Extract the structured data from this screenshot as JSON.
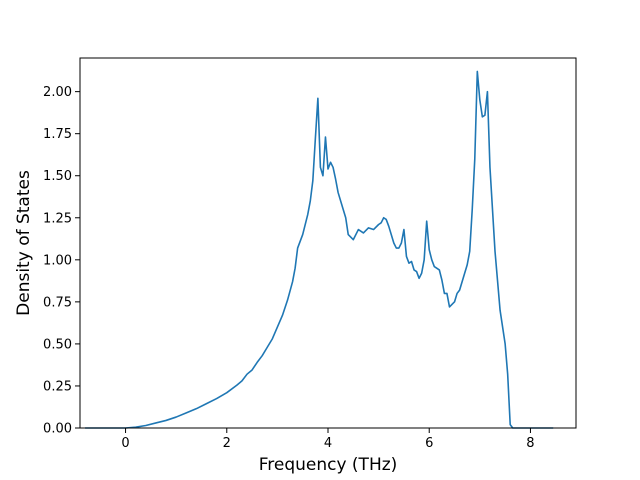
{
  "chart_data": {
    "type": "line",
    "title": "",
    "xlabel": "Frequency (THz)",
    "ylabel": "Density of States",
    "xlim": [
      -0.9,
      8.9
    ],
    "ylim": [
      0.0,
      2.2
    ],
    "x_ticks": [
      0,
      2,
      4,
      6,
      8
    ],
    "x_tick_labels": [
      "0",
      "2",
      "4",
      "6",
      "8"
    ],
    "y_ticks": [
      0.0,
      0.25,
      0.5,
      0.75,
      1.0,
      1.25,
      1.5,
      1.75,
      2.0
    ],
    "y_tick_labels": [
      "0.00",
      "0.25",
      "0.50",
      "0.75",
      "1.00",
      "1.25",
      "1.50",
      "1.75",
      "2.00"
    ],
    "grid": false,
    "color": "#1f77b4",
    "series": [
      {
        "x": [
          -0.8,
          -0.4,
          0.0,
          0.2,
          0.4,
          0.6,
          0.8,
          1.0,
          1.2,
          1.4,
          1.6,
          1.8,
          2.0,
          2.2,
          2.3,
          2.4,
          2.5,
          2.6,
          2.7,
          2.8,
          2.9,
          3.0,
          3.1,
          3.2,
          3.3,
          3.35,
          3.4,
          3.5,
          3.6,
          3.65,
          3.7,
          3.75,
          3.8,
          3.85,
          3.9,
          3.95,
          4.0,
          4.05,
          4.1,
          4.15,
          4.2,
          4.3,
          4.35,
          4.4,
          4.5,
          4.6,
          4.7,
          4.8,
          4.9,
          5.0,
          5.05,
          5.1,
          5.15,
          5.2,
          5.3,
          5.35,
          5.4,
          5.45,
          5.5,
          5.55,
          5.6,
          5.65,
          5.7,
          5.75,
          5.8,
          5.85,
          5.9,
          5.95,
          6.0,
          6.05,
          6.1,
          6.2,
          6.25,
          6.3,
          6.35,
          6.4,
          6.5,
          6.55,
          6.6,
          6.7,
          6.75,
          6.8,
          6.85,
          6.9,
          6.95,
          7.0,
          7.05,
          7.1,
          7.15,
          7.2,
          7.3,
          7.4,
          7.5,
          7.55,
          7.6,
          7.65,
          7.7,
          8.0,
          8.45
        ],
        "y": [
          0.0,
          0.0,
          0.0,
          0.005,
          0.015,
          0.03,
          0.045,
          0.065,
          0.09,
          0.115,
          0.145,
          0.175,
          0.21,
          0.255,
          0.28,
          0.32,
          0.345,
          0.39,
          0.43,
          0.48,
          0.53,
          0.6,
          0.67,
          0.76,
          0.87,
          0.95,
          1.07,
          1.15,
          1.27,
          1.35,
          1.47,
          1.72,
          1.96,
          1.55,
          1.5,
          1.73,
          1.54,
          1.58,
          1.55,
          1.48,
          1.4,
          1.3,
          1.25,
          1.15,
          1.12,
          1.18,
          1.16,
          1.19,
          1.18,
          1.21,
          1.22,
          1.25,
          1.24,
          1.2,
          1.1,
          1.07,
          1.07,
          1.1,
          1.18,
          1.02,
          0.98,
          0.99,
          0.94,
          0.93,
          0.89,
          0.92,
          1.0,
          1.23,
          1.06,
          1.0,
          0.96,
          0.94,
          0.88,
          0.8,
          0.8,
          0.72,
          0.75,
          0.8,
          0.82,
          0.92,
          0.97,
          1.05,
          1.3,
          1.6,
          2.12,
          1.95,
          1.85,
          1.86,
          2.0,
          1.55,
          1.05,
          0.7,
          0.5,
          0.32,
          0.02,
          0.0,
          0.0,
          0.0,
          0.0
        ]
      }
    ]
  }
}
